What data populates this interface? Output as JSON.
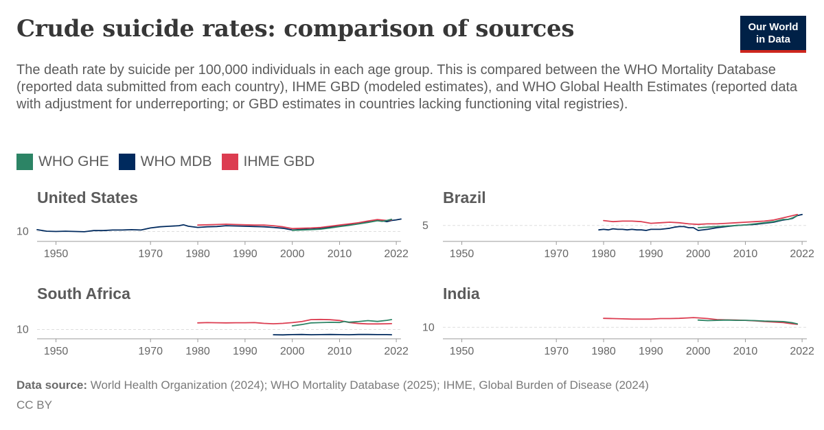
{
  "header": {
    "title": "Crude suicide rates: comparison of sources",
    "subtitle": "The death rate by suicide per 100,000 individuals in each age group. This is compared between the WHO Mortality Database (reported data submitted from each country), IHME GBD (modeled estimates), and WHO Global Health Estimates (reported data with adjustment for underreporting; or GBD estimates in countries lacking functioning vital registries).",
    "logo_line1": "Our World",
    "logo_line2": "in Data"
  },
  "legend": [
    {
      "label": "WHO GHE",
      "color": "#2c8465"
    },
    {
      "label": "WHO MDB",
      "color": "#002a5e"
    },
    {
      "label": "IHME GBD",
      "color": "#dc3c50"
    }
  ],
  "footer": {
    "source_label": "Data source:",
    "source_text": "World Health Organization (2024); WHO Mortality Database (2025); IHME, Global Burden of Disease (2024)",
    "license": "CC BY"
  },
  "chart_data": [
    {
      "type": "line",
      "title": "United States",
      "x_ticks": [
        1950,
        1970,
        1980,
        1990,
        2000,
        2010,
        2022
      ],
      "xlim": [
        1946,
        2023
      ],
      "y_ticks": [
        10
      ],
      "ylim": [
        7.5,
        17
      ],
      "series": [
        {
          "name": "WHO MDB",
          "color": "#002a5e",
          "x": [
            1946,
            1948,
            1950,
            1952,
            1954,
            1956,
            1958,
            1960,
            1962,
            1964,
            1966,
            1968,
            1970,
            1972,
            1974,
            1976,
            1977,
            1978,
            1980,
            1982,
            1984,
            1986,
            1988,
            1990,
            1992,
            1994,
            1996,
            1998,
            2000,
            2002,
            2004,
            2006,
            2008,
            2010,
            2012,
            2014,
            2016,
            2018,
            2019,
            2020,
            2021,
            2022,
            2023
          ],
          "y": [
            10.6,
            10.1,
            10.0,
            10.1,
            10.0,
            9.9,
            10.3,
            10.3,
            10.5,
            10.5,
            10.6,
            10.5,
            11.2,
            11.6,
            11.8,
            12.0,
            12.3,
            11.8,
            11.4,
            11.6,
            11.7,
            12.0,
            11.9,
            11.8,
            11.7,
            11.6,
            11.4,
            11.1,
            10.5,
            10.7,
            10.8,
            11.0,
            11.5,
            12.0,
            12.4,
            12.8,
            13.3,
            13.9,
            13.7,
            13.4,
            13.8,
            14.0,
            14.3
          ]
        },
        {
          "name": "IHME GBD",
          "color": "#dc3c50",
          "x": [
            1980,
            1982,
            1984,
            1986,
            1988,
            1990,
            1992,
            1994,
            1996,
            1998,
            2000,
            2002,
            2004,
            2006,
            2008,
            2010,
            2012,
            2014,
            2016,
            2018,
            2020,
            2021
          ],
          "y": [
            12.2,
            12.3,
            12.4,
            12.5,
            12.4,
            12.3,
            12.2,
            12.2,
            12.0,
            11.6,
            11.0,
            11.1,
            11.2,
            11.4,
            11.8,
            12.2,
            12.6,
            13.0,
            13.6,
            14.1,
            13.8,
            14.0
          ]
        },
        {
          "name": "WHO GHE",
          "color": "#2c8465",
          "x": [
            2000,
            2002,
            2004,
            2006,
            2008,
            2010,
            2012,
            2014,
            2016,
            2018,
            2019,
            2020,
            2021
          ],
          "y": [
            10.4,
            10.5,
            10.6,
            10.8,
            11.2,
            11.7,
            12.1,
            12.6,
            13.1,
            13.7,
            13.5,
            13.8,
            14.2
          ]
        }
      ]
    },
    {
      "type": "line",
      "title": "Brazil",
      "x_ticks": [
        1950,
        1970,
        1980,
        1990,
        2000,
        2010,
        2022
      ],
      "xlim": [
        1946,
        2023
      ],
      "y_ticks": [
        5
      ],
      "ylim": [
        2.6,
        7.6
      ],
      "series": [
        {
          "name": "WHO MDB",
          "color": "#002a5e",
          "x": [
            1979,
            1980,
            1981,
            1982,
            1983,
            1984,
            1985,
            1986,
            1987,
            1988,
            1989,
            1990,
            1991,
            1992,
            1993,
            1994,
            1995,
            1996,
            1997,
            1998,
            1999,
            2000,
            2002,
            2004,
            2006,
            2008,
            2010,
            2012,
            2014,
            2016,
            2018,
            2019,
            2020,
            2021,
            2022
          ],
          "y": [
            4.2,
            4.3,
            4.2,
            4.4,
            4.3,
            4.3,
            4.2,
            4.3,
            4.2,
            4.2,
            4.1,
            4.3,
            4.3,
            4.3,
            4.4,
            4.5,
            4.7,
            4.8,
            4.8,
            4.6,
            4.6,
            4.1,
            4.3,
            4.6,
            4.8,
            5.0,
            5.1,
            5.2,
            5.4,
            5.6,
            6.0,
            6.1,
            6.3,
            6.8,
            7.0
          ]
        },
        {
          "name": "IHME GBD",
          "color": "#dc3c50",
          "x": [
            1980,
            1982,
            1984,
            1986,
            1988,
            1990,
            1992,
            1994,
            1996,
            1998,
            2000,
            2002,
            2004,
            2006,
            2008,
            2010,
            2012,
            2014,
            2016,
            2018,
            2020,
            2021
          ],
          "y": [
            5.9,
            5.7,
            5.8,
            5.8,
            5.7,
            5.4,
            5.5,
            5.6,
            5.5,
            5.3,
            5.2,
            5.3,
            5.3,
            5.4,
            5.5,
            5.6,
            5.7,
            5.8,
            6.0,
            6.4,
            6.8,
            7.0
          ]
        },
        {
          "name": "WHO GHE",
          "color": "#2c8465",
          "x": [
            2000,
            2002,
            2004,
            2006,
            2008,
            2010,
            2012,
            2014,
            2016,
            2018,
            2019,
            2020,
            2021
          ],
          "y": [
            4.6,
            4.7,
            4.8,
            4.9,
            5.0,
            5.1,
            5.3,
            5.5,
            5.7,
            6.1,
            6.1,
            6.4,
            6.8
          ]
        }
      ]
    },
    {
      "type": "line",
      "title": "South Africa",
      "x_ticks": [
        1950,
        1970,
        1980,
        1990,
        2000,
        2010,
        2022
      ],
      "xlim": [
        1946,
        2023
      ],
      "y_ticks": [
        10
      ],
      "ylim": [
        5.5,
        24.5
      ],
      "series": [
        {
          "name": "WHO MDB",
          "color": "#002a5e",
          "x": [
            1996,
            1998,
            2000,
            2002,
            2004,
            2006,
            2008,
            2010,
            2012,
            2014,
            2016,
            2018,
            2020,
            2021
          ],
          "y": [
            6.4,
            6.3,
            6.5,
            6.6,
            6.4,
            6.5,
            6.6,
            6.5,
            6.4,
            6.6,
            6.6,
            6.5,
            6.5,
            6.4
          ]
        },
        {
          "name": "IHME GBD",
          "color": "#dc3c50",
          "x": [
            1980,
            1982,
            1984,
            1986,
            1988,
            1990,
            1992,
            1994,
            1996,
            1998,
            2000,
            2002,
            2004,
            2006,
            2008,
            2010,
            2012,
            2014,
            2016,
            2018,
            2020,
            2021
          ],
          "y": [
            14.6,
            14.8,
            14.7,
            14.6,
            14.7,
            14.7,
            14.8,
            14.3,
            14.0,
            14.3,
            14.8,
            15.5,
            16.9,
            17.0,
            16.8,
            16.3,
            14.9,
            14.2,
            13.9,
            13.9,
            14.0,
            14.1
          ]
        },
        {
          "name": "WHO GHE",
          "color": "#2c8465",
          "x": [
            2000,
            2002,
            2004,
            2006,
            2008,
            2010,
            2011,
            2012,
            2014,
            2016,
            2018,
            2020,
            2021
          ],
          "y": [
            12.6,
            13.5,
            14.6,
            14.8,
            15.0,
            14.9,
            15.6,
            15.1,
            15.5,
            16.2,
            15.6,
            16.4,
            16.9
          ]
        }
      ]
    },
    {
      "type": "line",
      "title": "India",
      "x_ticks": [
        1950,
        1970,
        1980,
        1990,
        2000,
        2010,
        2022
      ],
      "xlim": [
        1946,
        2023
      ],
      "y_ticks": [
        10
      ],
      "ylim": [
        6.5,
        17.5
      ],
      "series": [
        {
          "name": "IHME GBD",
          "color": "#dc3c50",
          "x": [
            1980,
            1982,
            1984,
            1986,
            1988,
            1990,
            1992,
            1994,
            1996,
            1998,
            1999,
            2000,
            2002,
            2004,
            2006,
            2008,
            2010,
            2012,
            2014,
            2016,
            2018,
            2020,
            2021
          ],
          "y": [
            13.6,
            13.5,
            13.4,
            13.3,
            13.3,
            13.3,
            13.5,
            13.5,
            13.6,
            13.8,
            13.9,
            13.8,
            13.5,
            13.1,
            13.0,
            12.9,
            12.8,
            12.6,
            12.3,
            12.1,
            11.9,
            11.4,
            11.2
          ]
        },
        {
          "name": "WHO GHE",
          "color": "#2c8465",
          "x": [
            2000,
            2002,
            2004,
            2006,
            2008,
            2010,
            2012,
            2014,
            2016,
            2018,
            2020,
            2021
          ],
          "y": [
            12.9,
            12.7,
            12.8,
            12.9,
            12.8,
            12.8,
            12.7,
            12.5,
            12.4,
            12.3,
            11.8,
            11.4
          ]
        }
      ]
    }
  ]
}
